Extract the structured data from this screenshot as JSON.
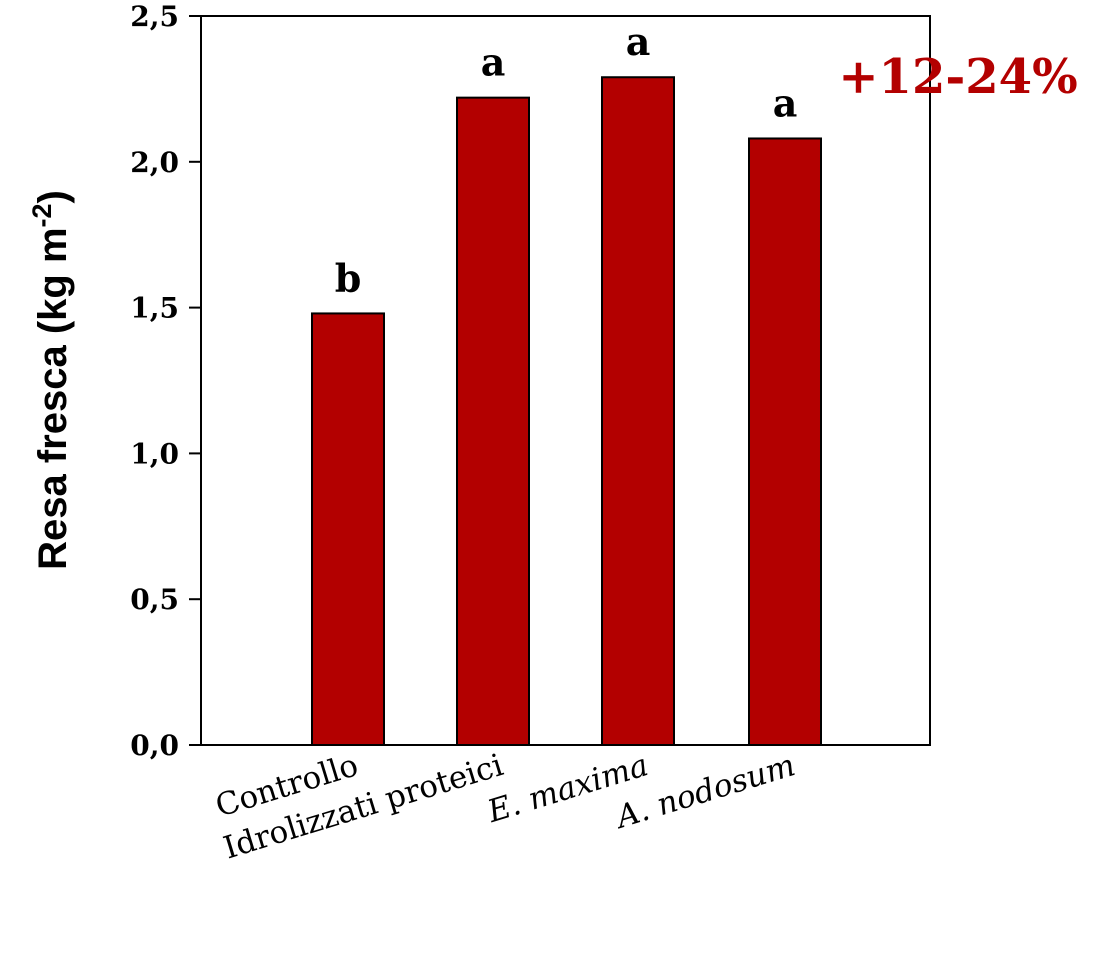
{
  "chart_data": {
    "type": "bar",
    "categories": [
      "Controllo",
      "Idrolizzati proteici",
      "E. maxima",
      "A. nodosum"
    ],
    "category_italic": [
      false,
      false,
      true,
      true
    ],
    "values": [
      1.48,
      2.22,
      2.29,
      2.08
    ],
    "significance": [
      "b",
      "a",
      "a",
      "a"
    ],
    "ylabel_main": "Resa fresca (kg m",
    "ylabel_sup": "-2",
    "ylabel_close": ")",
    "xlabel": "",
    "ylim": [
      0,
      2.5
    ],
    "yticks": [
      0,
      0.5,
      1.0,
      1.5,
      2.0,
      2.5
    ],
    "ytick_labels": [
      "0,0",
      "0,5",
      "1,0",
      "1,5",
      "2,0",
      "2,5"
    ],
    "grid": false,
    "annotation": "+12-24%",
    "bar_color": "#b30000",
    "annotation_color": "#b30000"
  }
}
